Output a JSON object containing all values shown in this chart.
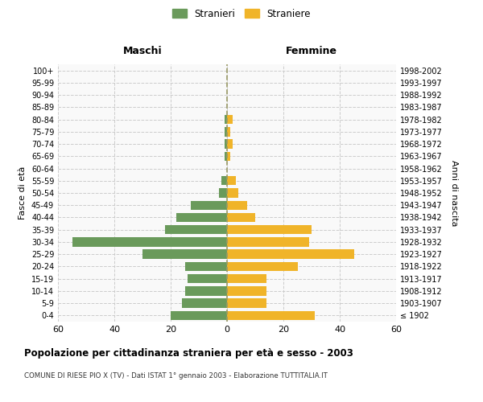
{
  "age_groups": [
    "100+",
    "95-99",
    "90-94",
    "85-89",
    "80-84",
    "75-79",
    "70-74",
    "65-69",
    "60-64",
    "55-59",
    "50-54",
    "45-49",
    "40-44",
    "35-39",
    "30-34",
    "25-29",
    "20-24",
    "15-19",
    "10-14",
    "5-9",
    "0-4"
  ],
  "birth_years": [
    "≤ 1902",
    "1903-1907",
    "1908-1912",
    "1913-1917",
    "1918-1922",
    "1923-1927",
    "1928-1932",
    "1933-1937",
    "1938-1942",
    "1943-1947",
    "1948-1952",
    "1953-1957",
    "1958-1962",
    "1963-1967",
    "1968-1972",
    "1973-1977",
    "1978-1982",
    "1983-1987",
    "1988-1992",
    "1993-1997",
    "1998-2002"
  ],
  "males": [
    0,
    0,
    0,
    0,
    1,
    1,
    1,
    1,
    0,
    2,
    3,
    13,
    18,
    22,
    55,
    30,
    15,
    14,
    15,
    16,
    20
  ],
  "females": [
    0,
    0,
    0,
    0,
    2,
    1,
    2,
    1,
    0,
    3,
    4,
    7,
    10,
    30,
    29,
    45,
    25,
    14,
    14,
    14,
    31
  ],
  "male_color": "#6a9a5b",
  "female_color": "#f0b429",
  "center_line_color": "#999966",
  "grid_color": "#cccccc",
  "bg_color": "#f9f9f9",
  "title": "Popolazione per cittadinanza straniera per età e sesso - 2003",
  "subtitle": "COMUNE DI RIESE PIO X (TV) - Dati ISTAT 1° gennaio 2003 - Elaborazione TUTTITALIA.IT",
  "legend_male": "Stranieri",
  "legend_female": "Straniere",
  "xlabel_left": "Maschi",
  "xlabel_right": "Femmine",
  "ylabel_left": "Fasce di età",
  "ylabel_right": "Anni di nascita",
  "xlim": 60
}
